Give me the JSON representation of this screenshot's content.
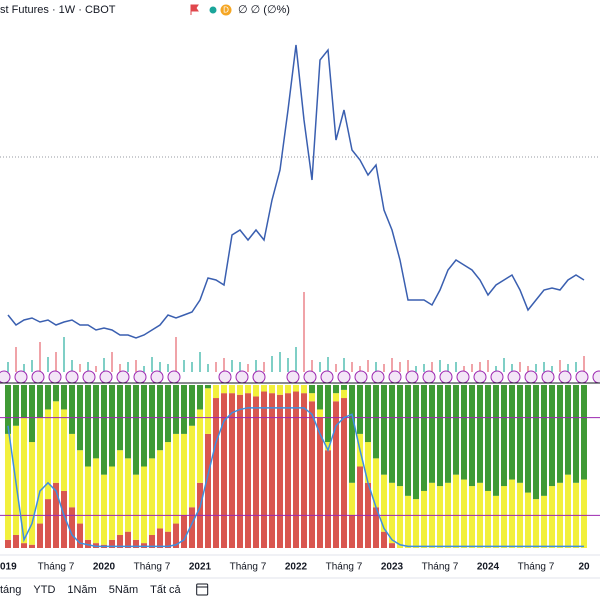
{
  "header": {
    "symbol": "st Futures · 1W · CBOT",
    "badge": "D",
    "change": "∅ ∅ (∅%)"
  },
  "toolbar": {
    "buttons": [
      "táng",
      "YTD",
      "1Năm",
      "5Năm",
      "Tất cả"
    ]
  },
  "chart_data": {
    "type": "line",
    "categories": [
      "019",
      null,
      null,
      null,
      null,
      null,
      "Tháng 7",
      null,
      null,
      null,
      null,
      null,
      "2020",
      null,
      null,
      null,
      null,
      null,
      "Tháng 7",
      null,
      null,
      null,
      null,
      null,
      "2021",
      null,
      null,
      null,
      null,
      null,
      "Tháng 7",
      null,
      null,
      null,
      null,
      null,
      "2022",
      null,
      null,
      null,
      null,
      null,
      "Tháng 7",
      null,
      null,
      null,
      null,
      null,
      "2023",
      null,
      null,
      null,
      null,
      null,
      "Tháng 7",
      null,
      null,
      null,
      null,
      null,
      "2024",
      null,
      null,
      null,
      null,
      null,
      "Tháng 7",
      null,
      null,
      null,
      null,
      null,
      "20"
    ],
    "color": "#3a5fb0",
    "ylim": [
      0,
      310
    ],
    "hline": 188,
    "values": [
      30,
      20,
      25,
      27,
      23,
      25,
      20,
      23,
      25,
      20,
      20,
      15,
      17,
      15,
      10,
      10,
      7,
      10,
      15,
      20,
      30,
      27,
      30,
      33,
      45,
      67,
      65,
      60,
      110,
      115,
      105,
      115,
      105,
      145,
      175,
      235,
      300,
      225,
      165,
      285,
      295,
      205,
      235,
      195,
      185,
      170,
      180,
      135,
      115,
      85,
      45,
      45,
      45,
      40,
      55,
      75,
      85,
      80,
      75,
      65,
      50,
      60,
      65,
      70,
      55,
      35,
      45,
      55,
      57,
      55,
      65,
      70,
      65
    ],
    "volume": [
      10,
      25,
      8,
      12,
      30,
      15,
      20,
      35,
      12,
      8,
      10,
      6,
      14,
      20,
      8,
      10,
      12,
      6,
      15,
      10,
      8,
      35,
      12,
      10,
      20,
      8,
      10,
      14,
      12,
      10,
      8,
      12,
      10,
      16,
      20,
      14,
      25,
      80,
      12,
      10,
      15,
      8,
      14,
      10,
      6,
      12,
      10,
      8,
      14,
      10,
      12,
      6,
      8,
      10,
      12,
      8,
      10,
      6,
      8,
      10,
      12,
      6,
      14,
      8,
      10,
      6,
      8,
      10,
      6,
      12,
      8,
      10,
      16
    ],
    "indicator": {
      "ylim": [
        0,
        100
      ],
      "levels": [
        80,
        20
      ],
      "series": [
        {
          "color": "#d9564f",
          "values": [
            5,
            8,
            3,
            2,
            15,
            30,
            40,
            35,
            25,
            15,
            5,
            3,
            2,
            5,
            8,
            10,
            5,
            3,
            8,
            12,
            10,
            15,
            20,
            25,
            40,
            70,
            92,
            95,
            95,
            94,
            95,
            93,
            96,
            95,
            94,
            95,
            96,
            95,
            90,
            80,
            60,
            90,
            92,
            20,
            50,
            40,
            25,
            10,
            3,
            0,
            0,
            0,
            0,
            0,
            0,
            0,
            0,
            0,
            0,
            0,
            0,
            0,
            0,
            0,
            0,
            0,
            0,
            0,
            0,
            0,
            0,
            0,
            0
          ]
        },
        {
          "color": "#f2f03c",
          "values": [
            65,
            67,
            77,
            63,
            65,
            55,
            50,
            50,
            45,
            45,
            45,
            52,
            43,
            45,
            52,
            45,
            40,
            47,
            47,
            48,
            55,
            55,
            50,
            50,
            45,
            28,
            8,
            5,
            5,
            6,
            5,
            7,
            4,
            5,
            6,
            5,
            4,
            5,
            5,
            5,
            5,
            5,
            5,
            20,
            20,
            25,
            30,
            35,
            37,
            38,
            32,
            30,
            35,
            40,
            38,
            40,
            45,
            42,
            38,
            40,
            35,
            32,
            38,
            42,
            40,
            34,
            30,
            32,
            38,
            40,
            45,
            40,
            42
          ]
        },
        {
          "color": "#3f9a35",
          "values": [
            30,
            25,
            20,
            35,
            20,
            15,
            10,
            15,
            30,
            40,
            50,
            45,
            55,
            50,
            40,
            45,
            55,
            50,
            45,
            40,
            35,
            30,
            30,
            25,
            15,
            2,
            0,
            0,
            0,
            0,
            0,
            0,
            0,
            0,
            0,
            0,
            0,
            0,
            5,
            15,
            35,
            5,
            3,
            60,
            30,
            35,
            45,
            55,
            60,
            62,
            68,
            70,
            65,
            60,
            62,
            60,
            55,
            58,
            62,
            60,
            65,
            68,
            62,
            58,
            60,
            66,
            70,
            68,
            62,
            60,
            55,
            60,
            58
          ]
        }
      ],
      "line": {
        "color": "#3d8fe0",
        "values": [
          75,
          40,
          5,
          15,
          35,
          40,
          35,
          20,
          8,
          3,
          2,
          1,
          1,
          1,
          1,
          1,
          1,
          1,
          1,
          1,
          1,
          2,
          5,
          15,
          25,
          45,
          65,
          78,
          83,
          85,
          86,
          86,
          86,
          86,
          86,
          86,
          86,
          86,
          82,
          70,
          60,
          75,
          80,
          82,
          60,
          40,
          25,
          12,
          5,
          2,
          1,
          1,
          1,
          1,
          1,
          1,
          1,
          1,
          1,
          1,
          1,
          1,
          1,
          1,
          1,
          1,
          1,
          1,
          1,
          1,
          1,
          1,
          1
        ]
      }
    }
  }
}
